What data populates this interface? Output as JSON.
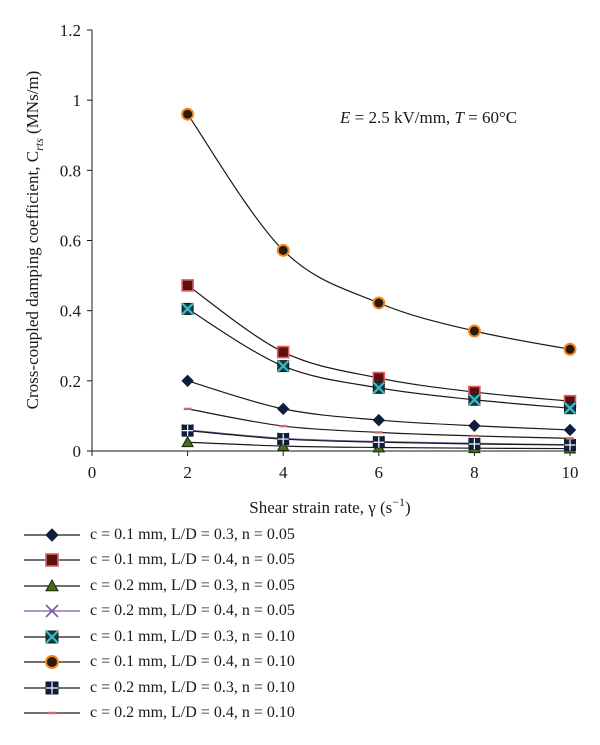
{
  "chart_data": {
    "type": "line",
    "ylabel": "Cross-coupled damping coefficient, C",
    "ylabel_sub": "rts",
    "ylabel_unit": " (MNs/m)",
    "xlabel": "Shear strain rate, γ (s",
    "xlabel_sup": "−1",
    "xlabel_end": ")",
    "annotation": "E = 2.5 kV/mm, T = 60°C",
    "annotation_parts": {
      "e_var": "E",
      "e_rest": " = 2.5 kV/mm, ",
      "t_var": "T",
      "t_rest": " = 60°C"
    },
    "xlim": [
      0,
      10
    ],
    "ylim": [
      0,
      1.2
    ],
    "xticks": [
      "0",
      "2",
      "4",
      "6",
      "8",
      "10"
    ],
    "yticks": [
      "0",
      "0.2",
      "0.4",
      "0.6",
      "0.8",
      "1",
      "1.2"
    ],
    "x": [
      2,
      4,
      6,
      8,
      10
    ],
    "grid": false,
    "legend_position": "bottom",
    "series": [
      {
        "name": "c = 0.1 mm, L/D = 0.3, n = 0.05",
        "values": [
          0.2,
          0.12,
          0.088,
          0.072,
          0.06
        ],
        "marker": "diamond",
        "marker_fill": "#0d1f3c",
        "marker_edge": "#0d1f3c",
        "line_color": "#1a1a1a"
      },
      {
        "name": "c = 0.1 mm, L/D = 0.4, n = 0.05",
        "values": [
          0.472,
          0.282,
          0.208,
          0.168,
          0.142
        ],
        "marker": "square",
        "marker_fill": "#5c1010",
        "marker_edge": "#e06060",
        "line_color": "#1a1a1a"
      },
      {
        "name": "c = 0.2 mm, L/D = 0.3, n = 0.05",
        "values": [
          0.025,
          0.014,
          0.01,
          0.008,
          0.007
        ],
        "marker": "triangle",
        "marker_fill": "#4a6a1a",
        "marker_edge": "#1a2a0a",
        "line_color": "#1a1a1a"
      },
      {
        "name": "c = 0.2 mm, L/D = 0.4, n = 0.05",
        "values": [
          0.06,
          0.036,
          0.027,
          0.022,
          0.018
        ],
        "marker": "x",
        "marker_fill": "#7a5aa8",
        "marker_edge": "#7a5aa8",
        "line_color": "#7a5aa8"
      },
      {
        "name": "c = 0.1 mm, L/D = 0.3, n = 0.10",
        "values": [
          0.405,
          0.242,
          0.18,
          0.146,
          0.122
        ],
        "marker": "xsquare",
        "marker_fill": "#1a3a3a",
        "marker_edge": "#3ab8c8",
        "line_color": "#1a1a1a"
      },
      {
        "name": "c = 0.1 mm, L/D = 0.4, n = 0.10",
        "values": [
          0.96,
          0.572,
          0.422,
          0.342,
          0.29
        ],
        "marker": "circle",
        "marker_fill": "#2a1a0a",
        "marker_edge": "#f08a20",
        "line_color": "#1a1a1a"
      },
      {
        "name": "c = 0.2 mm, L/D = 0.3, n = 0.10",
        "values": [
          0.058,
          0.034,
          0.025,
          0.02,
          0.017
        ],
        "marker": "plussquare",
        "marker_fill": "#0d1f3c",
        "marker_edge": "#0d1f3c",
        "line_color": "#1a1a1a"
      },
      {
        "name": "c = 0.2 mm, L/D = 0.4, n = 0.10",
        "values": [
          0.12,
          0.071,
          0.053,
          0.043,
          0.036
        ],
        "marker": "dash",
        "marker_fill": "#d06a6a",
        "marker_edge": "#d06a6a",
        "line_color": "#1a1a1a"
      }
    ]
  }
}
